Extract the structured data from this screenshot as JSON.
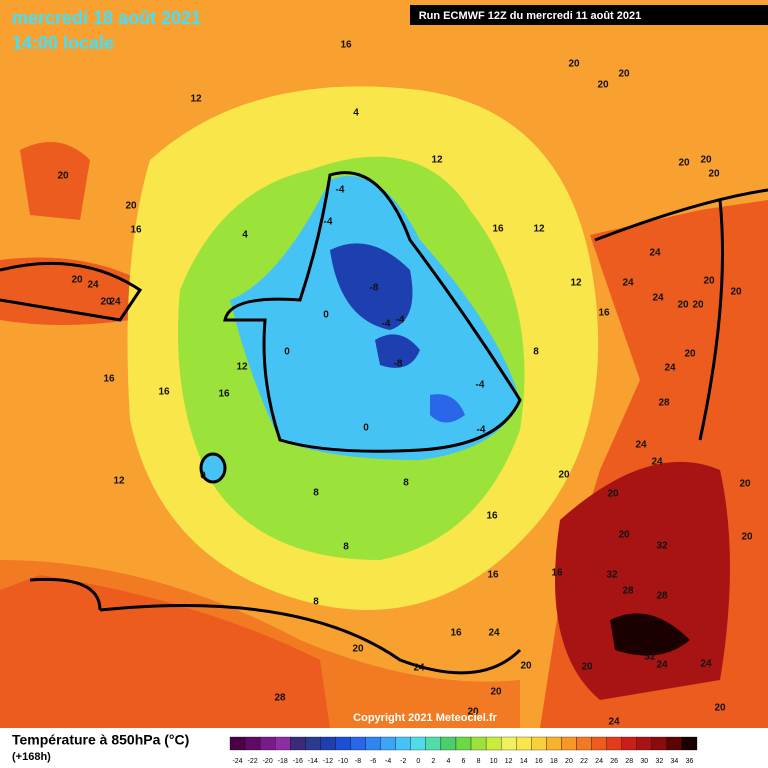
{
  "header": {
    "date": "mercredi 18 août 2021",
    "time": "14:00 locale",
    "run": "Run ECMWF 12Z du mercredi 11 août 2021"
  },
  "copyright": "Copyright 2021 Meteociel.fr",
  "legend": {
    "title": "Température à 850hPa (°C)",
    "subtitle": "(+168h)",
    "scale": [
      {
        "label": "-24",
        "color": "#4b0048"
      },
      {
        "label": "-22",
        "color": "#5e0a66"
      },
      {
        "label": "-20",
        "color": "#7a1a8a"
      },
      {
        "label": "-18",
        "color": "#8e2ea3"
      },
      {
        "label": "-16",
        "color": "#3b2a7a"
      },
      {
        "label": "-14",
        "color": "#2b3c8f"
      },
      {
        "label": "-12",
        "color": "#1e3fb0"
      },
      {
        "label": "-10",
        "color": "#1d4ed8"
      },
      {
        "label": "-8",
        "color": "#2966e8"
      },
      {
        "label": "-6",
        "color": "#2f86f0"
      },
      {
        "label": "-4",
        "color": "#3aa6f4"
      },
      {
        "label": "-2",
        "color": "#46c3f5"
      },
      {
        "label": "0",
        "color": "#50dbe8"
      },
      {
        "label": "2",
        "color": "#52dca8"
      },
      {
        "label": "4",
        "color": "#4ccf6a"
      },
      {
        "label": "6",
        "color": "#6bd845"
      },
      {
        "label": "8",
        "color": "#9be23a"
      },
      {
        "label": "10",
        "color": "#c8ec3c"
      },
      {
        "label": "12",
        "color": "#f0f060"
      },
      {
        "label": "14",
        "color": "#f8e64a"
      },
      {
        "label": "16",
        "color": "#f9cf3a"
      },
      {
        "label": "18",
        "color": "#f9b12e"
      },
      {
        "label": "20",
        "color": "#f89628"
      },
      {
        "label": "22",
        "color": "#f27a22"
      },
      {
        "label": "24",
        "color": "#ec5c1e"
      },
      {
        "label": "26",
        "color": "#e23c1a"
      },
      {
        "label": "28",
        "color": "#c82018"
      },
      {
        "label": "30",
        "color": "#a81414"
      },
      {
        "label": "32",
        "color": "#8a0c0c"
      },
      {
        "label": "34",
        "color": "#5a0404"
      },
      {
        "label": "36",
        "color": "#1a0000"
      }
    ]
  },
  "contour_labels": [
    "16",
    "20",
    "20",
    "20",
    "12",
    "4",
    "12",
    "20",
    "20",
    "20",
    "20",
    "20",
    "16",
    "4",
    "-4",
    "-4",
    "16",
    "12",
    "24",
    "24",
    "24",
    "20",
    "20",
    "20",
    "20",
    "20",
    "24",
    "20",
    "24",
    "-8",
    "-4",
    "-4",
    "0",
    "12",
    "16",
    "20",
    "24",
    "28",
    "8",
    "-8",
    "-4",
    "-4",
    "0",
    "0",
    "12",
    "16",
    "16",
    "16",
    "24",
    "24",
    "20",
    "20",
    "20",
    "0",
    "12",
    "8",
    "8",
    "16",
    "20",
    "32",
    "20",
    "8",
    "16",
    "16",
    "32",
    "28",
    "28",
    "8",
    "16",
    "24",
    "20",
    "32",
    "24",
    "24",
    "24",
    "20",
    "20",
    "28",
    "20",
    "20",
    "20",
    "24"
  ]
}
